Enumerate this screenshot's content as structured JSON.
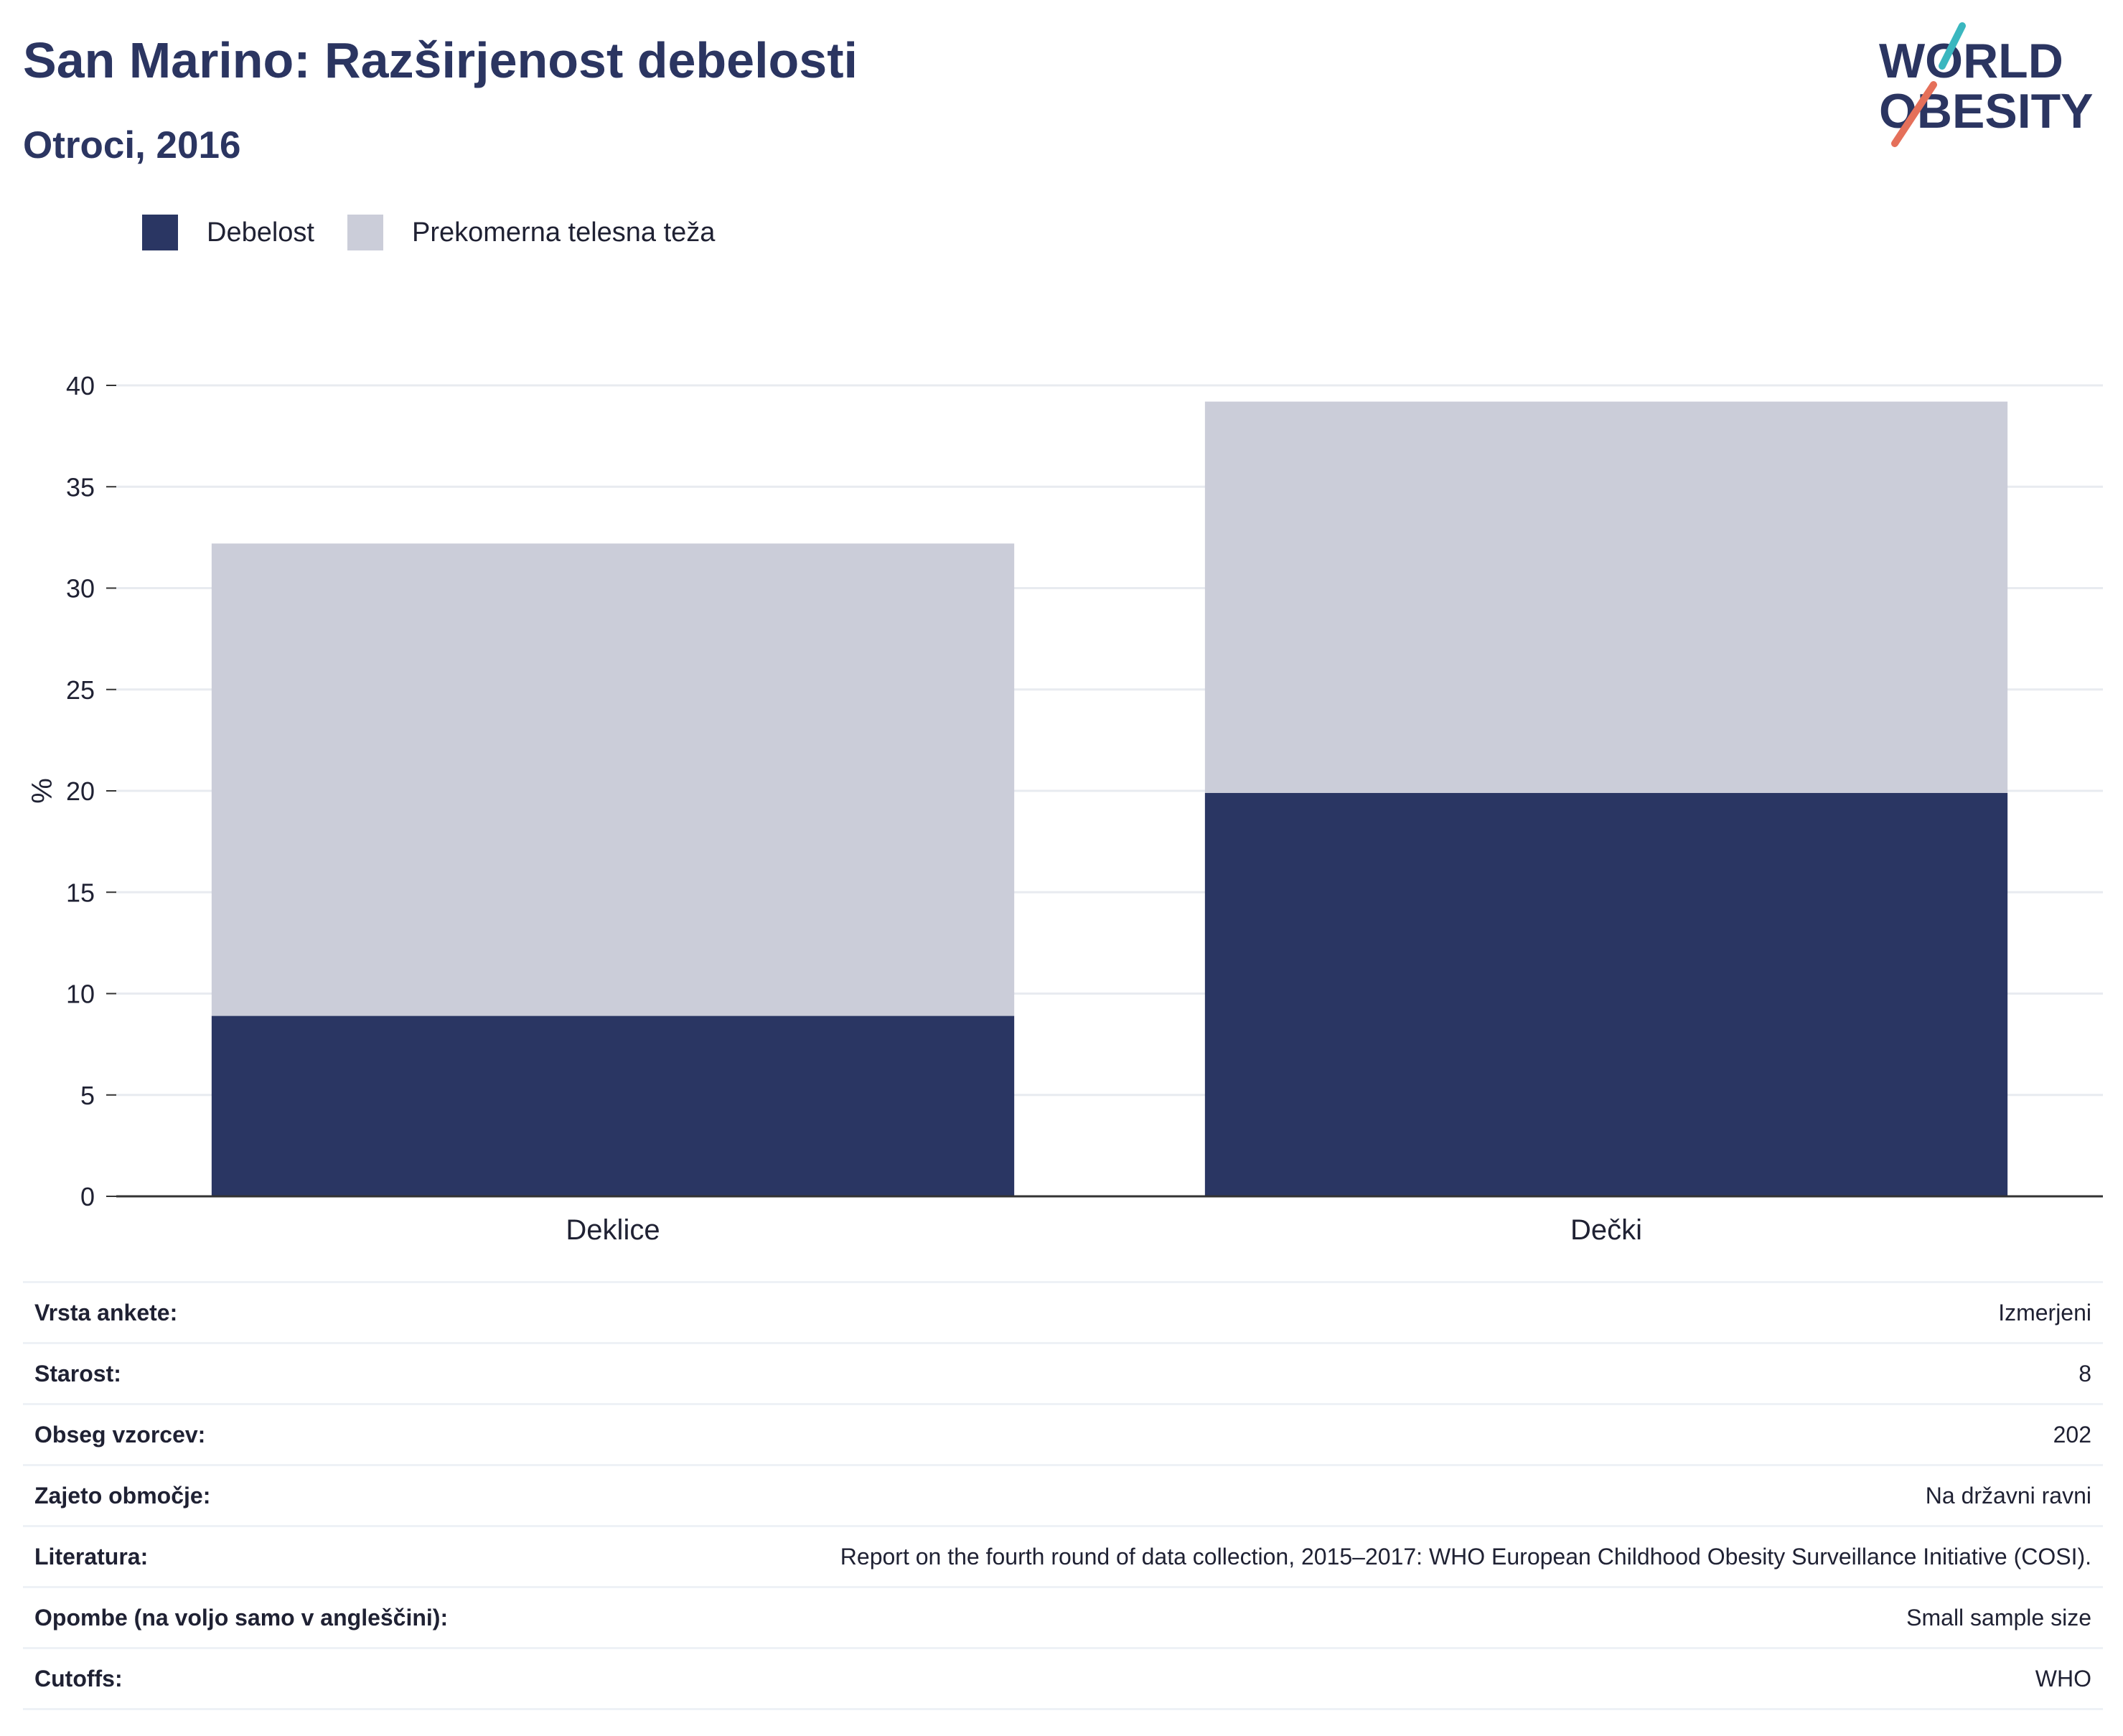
{
  "header": {
    "title": "San Marino: Razširjenost debelosti",
    "subtitle": "Otroci, 2016"
  },
  "logo": {
    "line1": "WORLD",
    "line2": "OBESITY",
    "slash_top_color": "#3ab7bf",
    "slash_bottom_color": "#e5705a"
  },
  "colors": {
    "obesity": "#2a3663",
    "overweight": "#cbcdd9",
    "grid": "#e8ebf0",
    "axis": "#333333"
  },
  "chart_data": {
    "type": "bar",
    "stacked": true,
    "categories": [
      "Deklice",
      "Dečki"
    ],
    "series": [
      {
        "name": "Debelost",
        "values": [
          8.9,
          19.9
        ]
      },
      {
        "name": "Prekomerna telesna teža",
        "values": [
          23.3,
          19.3
        ]
      }
    ],
    "ylabel": "%",
    "ylim": [
      0,
      40
    ],
    "yticks": [
      0,
      5,
      10,
      15,
      20,
      25,
      30,
      35,
      40
    ],
    "grid": true,
    "legend_position": "top-left"
  },
  "table": {
    "rows": [
      {
        "key": "Vrsta ankete:",
        "value": "Izmerjeni"
      },
      {
        "key": "Starost:",
        "value": "8"
      },
      {
        "key": "Obseg vzorcev:",
        "value": "202"
      },
      {
        "key": "Zajeto območje:",
        "value": "Na državni ravni"
      },
      {
        "key": "Literatura:",
        "value": "Report on the fourth round of data collection, 2015–2017: WHO European Childhood Obesity Surveillance Initiative (COSI)."
      },
      {
        "key": "Opombe (na voljo samo v angleščini):",
        "value": "Small sample size"
      },
      {
        "key": "Cutoffs:",
        "value": "WHO"
      }
    ]
  }
}
